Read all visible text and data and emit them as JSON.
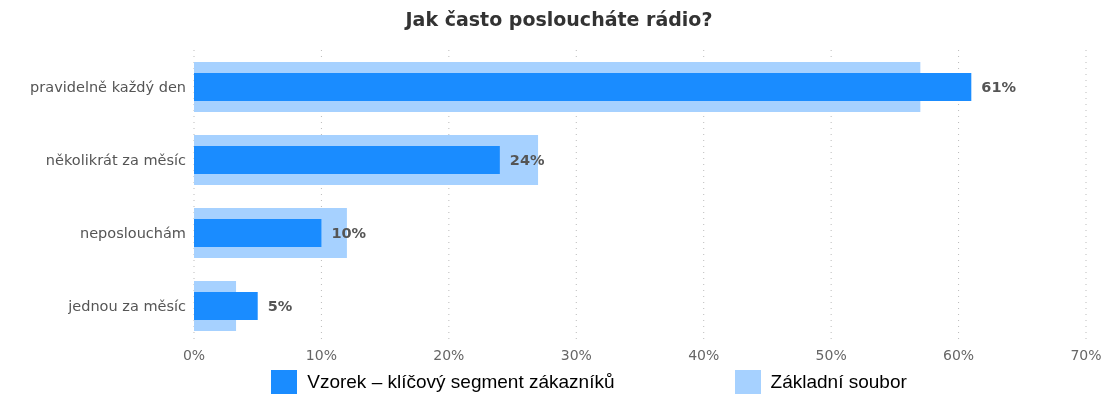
{
  "chart_data": {
    "type": "bar",
    "orientation": "horizontal",
    "title": "Jak často posloucháte rádio?",
    "categories": [
      "pravidelně každý den",
      "několikrát za měsíc",
      "neposlouchám",
      "jednou za měsíc"
    ],
    "series": [
      {
        "name": "Vzorek – klíčový segment zákazníků",
        "color": "#1a8cff",
        "values": [
          61,
          24,
          10,
          5
        ],
        "value_labels": [
          "61%",
          "24%",
          "10%",
          "5%"
        ]
      },
      {
        "name": "Základní soubor",
        "color": "#a6d1ff",
        "values": [
          57,
          27,
          12,
          3.3
        ]
      }
    ],
    "xlim": [
      0,
      70
    ],
    "xticks": [
      {
        "value": 0,
        "label": "0%"
      },
      {
        "value": 10,
        "label": "10%"
      },
      {
        "value": 20,
        "label": "20%"
      },
      {
        "value": 30,
        "label": "30%"
      },
      {
        "value": 40,
        "label": "40%"
      },
      {
        "value": 50,
        "label": "50%"
      },
      {
        "value": 60,
        "label": "60%"
      },
      {
        "value": 70,
        "label": "70%"
      }
    ],
    "grid": "x",
    "legend": "bottom"
  }
}
